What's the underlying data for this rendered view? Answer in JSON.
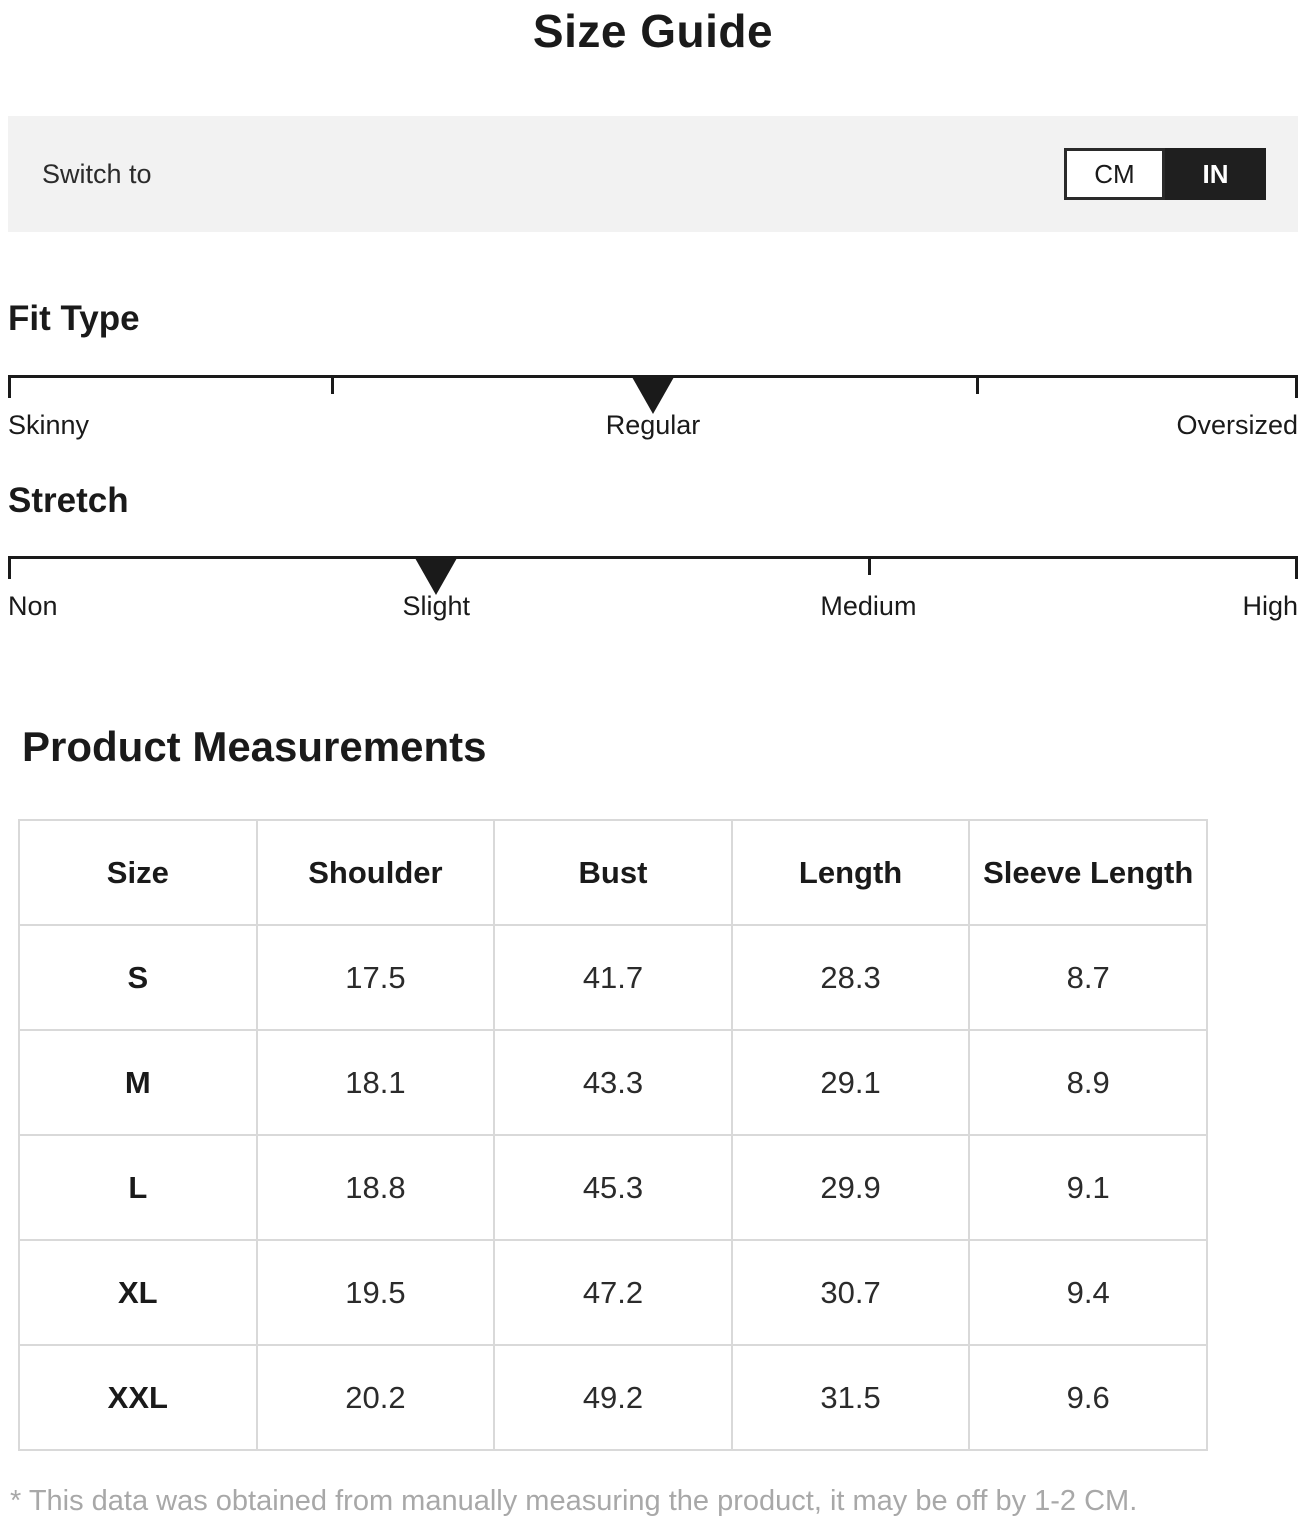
{
  "page": {
    "title": "Size Guide"
  },
  "unit_bar": {
    "label": "Switch to",
    "options": [
      {
        "label": "CM",
        "selected": false
      },
      {
        "label": "IN",
        "selected": true
      }
    ]
  },
  "fit_type": {
    "title": "Fit Type",
    "labels": [
      "Skinny",
      "Regular",
      "Oversized"
    ],
    "selected": "Regular"
  },
  "stretch": {
    "title": "Stretch",
    "labels": [
      "Non",
      "Slight",
      "Medium",
      "High"
    ],
    "selected": "Slight"
  },
  "measurements": {
    "title": "Product Measurements",
    "columns": [
      "Size",
      "Shoulder",
      "Bust",
      "Length",
      "Sleeve Length"
    ],
    "rows": [
      {
        "size": "S",
        "values": [
          "17.5",
          "41.7",
          "28.3",
          "8.7"
        ]
      },
      {
        "size": "M",
        "values": [
          "18.1",
          "43.3",
          "29.1",
          "8.9"
        ]
      },
      {
        "size": "L",
        "values": [
          "18.8",
          "45.3",
          "29.9",
          "9.1"
        ]
      },
      {
        "size": "XL",
        "values": [
          "19.5",
          "47.2",
          "30.7",
          "9.4"
        ]
      },
      {
        "size": "XXL",
        "values": [
          "20.2",
          "49.2",
          "31.5",
          "9.6"
        ]
      }
    ]
  },
  "footnote": "* This data was obtained from manually measuring the product, it may be off by 1-2 CM.",
  "colors": {
    "selected_unit_bg": "#1f1f1f",
    "bar_bg": "#f2f2f2",
    "table_border": "#d9d9d9",
    "footnote_text": "#a8a8a8"
  }
}
